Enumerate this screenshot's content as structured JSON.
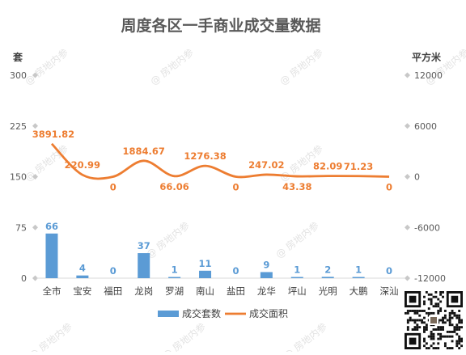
{
  "chart_data": {
    "type": "bar+line",
    "title": "周度各区一手商业成交量数据",
    "left_axis_label": "套",
    "right_axis_label": "平方米",
    "categories": [
      "全市",
      "宝安",
      "福田",
      "龙岗",
      "罗湖",
      "南山",
      "盐田",
      "龙华",
      "坪山",
      "光明",
      "大鹏",
      "深汕"
    ],
    "left_axis": {
      "min": 0,
      "max": 300,
      "ticks": [
        0,
        75,
        150,
        225,
        300
      ]
    },
    "right_axis": {
      "min": -12000,
      "max": 12000,
      "ticks": [
        -12000,
        -6000,
        0,
        6000,
        12000
      ]
    },
    "series": [
      {
        "name": "成交套数",
        "type": "bar",
        "axis": "left",
        "color": "#5b9bd5",
        "values": [
          66,
          4,
          0,
          37,
          1,
          11,
          0,
          9,
          1,
          2,
          1,
          0
        ],
        "labels": [
          "66",
          "4",
          "0",
          "37",
          "1",
          "11",
          "0",
          "9",
          "1",
          "2",
          "1",
          "0"
        ]
      },
      {
        "name": "成交面积",
        "type": "line",
        "axis": "right",
        "color": "#ed7d31",
        "values": [
          3891.82,
          220.99,
          0,
          1884.67,
          66.06,
          1276.38,
          0,
          247.02,
          43.38,
          82.09,
          71.23,
          0
        ],
        "labels": [
          "3891.82",
          "220.99",
          "0",
          "1884.67",
          "66.06",
          "1276.38",
          "0",
          "247.02",
          "43.38",
          "82.09",
          "71.23",
          "0"
        ]
      }
    ],
    "legend_position": "bottom",
    "grid": false
  },
  "watermark": "@ 房地内参",
  "qr_code": "qr-code"
}
